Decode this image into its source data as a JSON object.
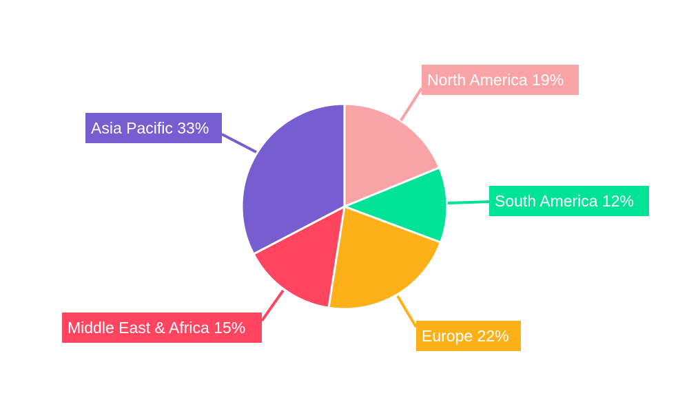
{
  "chart_data": {
    "type": "pie",
    "title": "",
    "start_angle": "12 o'clock, clockwise",
    "slices": [
      {
        "label": "North America",
        "value": 19,
        "display": "North America 19%",
        "color": "#f9a3a6"
      },
      {
        "label": "South America",
        "value": 12,
        "display": "South America 12%",
        "color": "#00e396"
      },
      {
        "label": "Europe",
        "value": 22,
        "display": "Europe 22%",
        "color": "#feb019"
      },
      {
        "label": "Middle East & Africa",
        "value": 15,
        "display": "Middle East & Africa 15%",
        "color": "#ff4560"
      },
      {
        "label": "Asia Pacific",
        "value": 33,
        "display": "Asia Pacific 33%",
        "color": "#775dd0"
      }
    ],
    "legend": "none"
  }
}
